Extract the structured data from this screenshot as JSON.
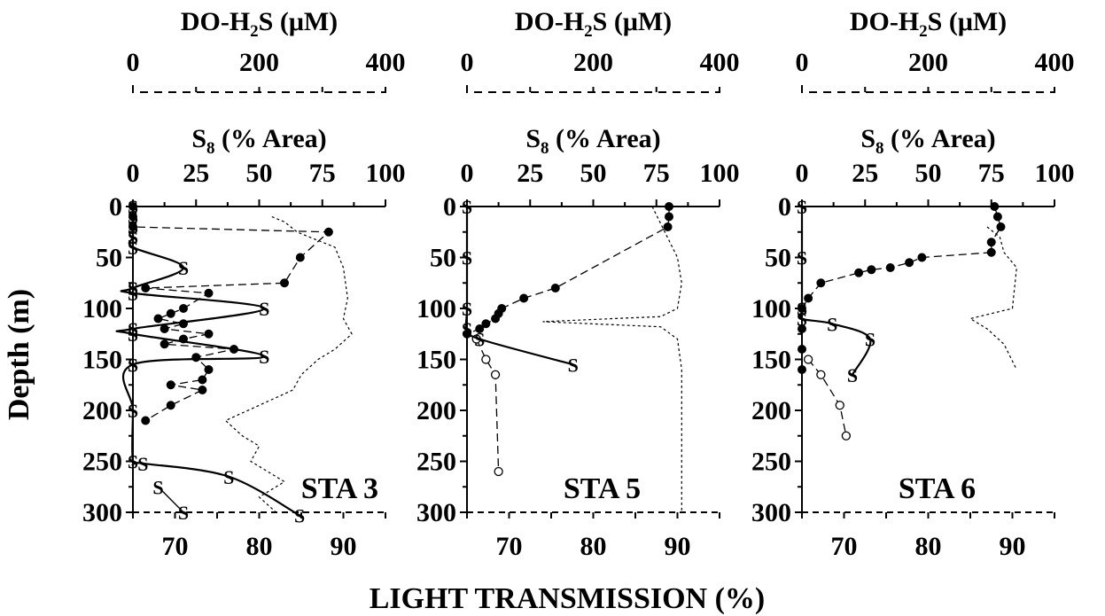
{
  "figure": {
    "shared_ylabel": "Depth (m)",
    "shared_xlabel": "LIGHT TRANSMISSION (%)"
  },
  "chart_data": [
    {
      "type": "line",
      "panel": "STA 3",
      "station_label": "STA 3",
      "top_axis": {
        "label_main": "DO-H",
        "label_sub": "2",
        "label_tail": "S (μM)",
        "ticks": [
          "0",
          "200",
          "400"
        ],
        "range": [
          0,
          400
        ]
      },
      "s8_axis": {
        "label_main": "S",
        "label_sub": "8",
        "label_tail": " (% Area)",
        "ticks": [
          "0",
          "25",
          "50",
          "75",
          "100"
        ],
        "range": [
          0,
          100
        ]
      },
      "y_axis": {
        "ticks": [
          "0",
          "50",
          "100",
          "150",
          "200",
          "250",
          "300"
        ],
        "range": [
          0,
          300
        ],
        "inverted": true
      },
      "bottom_axis": {
        "ticks": [
          "70",
          "80",
          "90"
        ],
        "range": [
          65,
          95
        ]
      },
      "series": [
        {
          "axis": "top",
          "marker": "filled",
          "style": "dashed",
          "points": [
            [
              0,
              0
            ],
            [
              0,
              10
            ],
            [
              0,
              20
            ],
            [
              310,
              25
            ],
            [
              265,
              50
            ],
            [
              240,
              75
            ],
            [
              20,
              80
            ],
            [
              120,
              85
            ],
            [
              80,
              100
            ],
            [
              60,
              105
            ],
            [
              40,
              110
            ],
            [
              80,
              115
            ],
            [
              50,
              120
            ],
            [
              120,
              125
            ],
            [
              80,
              130
            ],
            [
              50,
              135
            ],
            [
              160,
              140
            ],
            [
              100,
              148
            ],
            [
              120,
              160
            ],
            [
              110,
              170
            ],
            [
              60,
              175
            ],
            [
              110,
              180
            ],
            [
              60,
              195
            ],
            [
              20,
              210
            ]
          ]
        },
        {
          "axis": "s8",
          "marker": "S",
          "style": "solid",
          "points": [
            [
              0,
              0
            ],
            [
              0,
              10
            ],
            [
              0,
              20
            ],
            [
              0,
              30
            ],
            [
              0,
              40
            ],
            [
              20,
              60
            ],
            [
              0,
              80
            ],
            [
              0,
              85
            ],
            [
              52,
              100
            ],
            [
              0,
              120
            ],
            [
              0,
              125
            ],
            [
              52,
              147
            ],
            [
              0,
              155
            ],
            [
              0,
              200
            ],
            [
              0,
              250
            ],
            [
              4,
              252
            ],
            [
              38,
              265
            ],
            [
              66,
              303
            ]
          ]
        },
        {
          "axis": "s8",
          "marker": "S",
          "style": "solid-thin",
          "points": [
            [
              10,
              275
            ],
            [
              20,
              300
            ]
          ]
        },
        {
          "axis": "bottom",
          "marker": "none",
          "style": "dotted",
          "points": [
            [
              81.5,
              10
            ],
            [
              83,
              15
            ],
            [
              84.5,
              25
            ],
            [
              89,
              40
            ],
            [
              90,
              60
            ],
            [
              90.5,
              90
            ],
            [
              90,
              110
            ],
            [
              91,
              125
            ],
            [
              89,
              140
            ],
            [
              87,
              150
            ],
            [
              85,
              165
            ],
            [
              84,
              180
            ],
            [
              80,
              195
            ],
            [
              76,
              210
            ],
            [
              78,
              225
            ],
            [
              80,
              235
            ],
            [
              79,
              250
            ],
            [
              83,
              270
            ],
            [
              80,
              285
            ],
            [
              82,
              300
            ]
          ]
        }
      ]
    },
    {
      "type": "line",
      "panel": "STA 5",
      "station_label": "STA 5",
      "top_axis": {
        "label_main": "DO-H",
        "label_sub": "2",
        "label_tail": "S (μM)",
        "ticks": [
          "0",
          "200",
          "400"
        ],
        "range": [
          0,
          400
        ]
      },
      "s8_axis": {
        "label_main": "S",
        "label_sub": "8",
        "label_tail": " (% Area)",
        "ticks": [
          "0",
          "25",
          "50",
          "75",
          "100"
        ],
        "range": [
          0,
          100
        ]
      },
      "y_axis": {
        "ticks": [
          "0",
          "50",
          "100",
          "150",
          "200",
          "250",
          "300"
        ],
        "range": [
          0,
          300
        ],
        "inverted": true
      },
      "bottom_axis": {
        "ticks": [
          "70",
          "80",
          "90"
        ],
        "range": [
          65,
          95
        ]
      },
      "series": [
        {
          "axis": "top",
          "marker": "filled",
          "style": "dashed",
          "points": [
            [
              320,
              0
            ],
            [
              320,
              10
            ],
            [
              318,
              20
            ],
            [
              140,
              80
            ],
            [
              90,
              90
            ],
            [
              55,
              100
            ],
            [
              50,
              105
            ],
            [
              45,
              110
            ],
            [
              30,
              115
            ],
            [
              20,
              120
            ],
            [
              0,
              125
            ]
          ]
        },
        {
          "axis": "top",
          "marker": "open",
          "style": "dashed",
          "points": [
            [
              15,
              130
            ],
            [
              30,
              150
            ],
            [
              45,
              165
            ],
            [
              50,
              260
            ]
          ]
        },
        {
          "axis": "s8",
          "marker": "S",
          "style": "solid",
          "points": [
            [
              0,
              0
            ],
            [
              0,
              50
            ],
            [
              0,
              100
            ],
            [
              0,
              120
            ],
            [
              5,
              130
            ],
            [
              42,
              155
            ]
          ]
        },
        {
          "axis": "bottom",
          "marker": "none",
          "style": "dotted",
          "points": [
            [
              87,
              0
            ],
            [
              88.5,
              25
            ],
            [
              90,
              50
            ],
            [
              90.5,
              75
            ],
            [
              90,
              100
            ],
            [
              88,
              108
            ],
            [
              74,
              113
            ],
            [
              88,
              118
            ],
            [
              90,
              130
            ],
            [
              90.5,
              160
            ],
            [
              90.5,
              300
            ]
          ]
        }
      ]
    },
    {
      "type": "line",
      "panel": "STA 6",
      "station_label": "STA 6",
      "top_axis": {
        "label_main": "DO-H",
        "label_sub": "2",
        "label_tail": "S (μM)",
        "ticks": [
          "0",
          "200",
          "400"
        ],
        "range": [
          0,
          400
        ]
      },
      "s8_axis": {
        "label_main": "S",
        "label_sub": "8",
        "label_tail": " (% Area)",
        "ticks": [
          "0",
          "25",
          "50",
          "75",
          "100"
        ],
        "range": [
          0,
          100
        ]
      },
      "y_axis": {
        "ticks": [
          "0",
          "50",
          "100",
          "150",
          "200",
          "250",
          "300"
        ],
        "range": [
          0,
          300
        ],
        "inverted": true
      },
      "bottom_axis": {
        "ticks": [
          "70",
          "80",
          "90"
        ],
        "range": [
          65,
          95
        ]
      },
      "series": [
        {
          "axis": "top",
          "marker": "filled",
          "style": "dashed",
          "points": [
            [
              305,
              0
            ],
            [
              310,
              10
            ],
            [
              315,
              20
            ],
            [
              300,
              35
            ],
            [
              300,
              45
            ],
            [
              190,
              50
            ],
            [
              170,
              55
            ],
            [
              140,
              60
            ],
            [
              110,
              62
            ],
            [
              90,
              65
            ],
            [
              30,
              75
            ],
            [
              10,
              90
            ],
            [
              0,
              100
            ],
            [
              0,
              120
            ],
            [
              0,
              140
            ],
            [
              0,
              160
            ]
          ]
        },
        {
          "axis": "top",
          "marker": "open",
          "style": "dashed",
          "points": [
            [
              10,
              150
            ],
            [
              30,
              165
            ],
            [
              60,
              195
            ],
            [
              70,
              225
            ]
          ]
        },
        {
          "axis": "s8",
          "marker": "S",
          "style": "solid",
          "points": [
            [
              0,
              0
            ],
            [
              0,
              50
            ],
            [
              0,
              100
            ],
            [
              0,
              110
            ],
            [
              12,
              115
            ],
            [
              27,
              130
            ],
            [
              20,
              165
            ]
          ]
        },
        {
          "axis": "bottom",
          "marker": "none",
          "style": "dotted",
          "points": [
            [
              87,
              20
            ],
            [
              88.5,
              30
            ],
            [
              89,
              45
            ],
            [
              90.5,
              60
            ],
            [
              90,
              100
            ],
            [
              85,
              110
            ],
            [
              87,
              120
            ],
            [
              89,
              135
            ],
            [
              90.5,
              160
            ]
          ]
        }
      ]
    }
  ]
}
